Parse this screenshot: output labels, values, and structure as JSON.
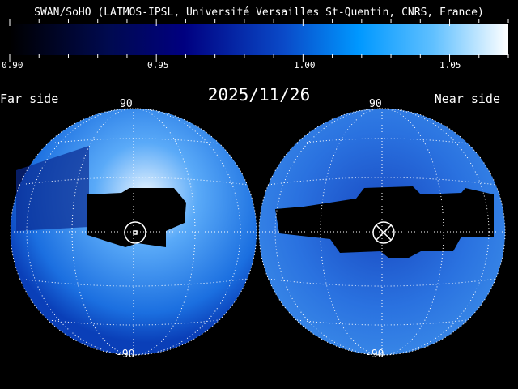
{
  "header": {
    "title": "SWAN/SoHO (LATMOS-IPSL, Université Versailles St-Quentin, CNRS, France)",
    "date": "2025/11/26"
  },
  "colorbar": {
    "ticks": [
      "0.90",
      "0.95",
      "1.00",
      "1.05"
    ],
    "range": [
      0.9,
      1.07
    ],
    "colors": [
      "#000000",
      "#000080",
      "#0060d8",
      "#0098ff",
      "#ffffff"
    ]
  },
  "maps": {
    "far": {
      "label": "Far side",
      "top_lat": "90",
      "bottom_lat": "-90",
      "symbol": "sun-circle-dot-icon"
    },
    "near": {
      "label": "Near side",
      "top_lat": "90",
      "bottom_lat": "-90",
      "symbol": "circle-cross-icon"
    }
  }
}
